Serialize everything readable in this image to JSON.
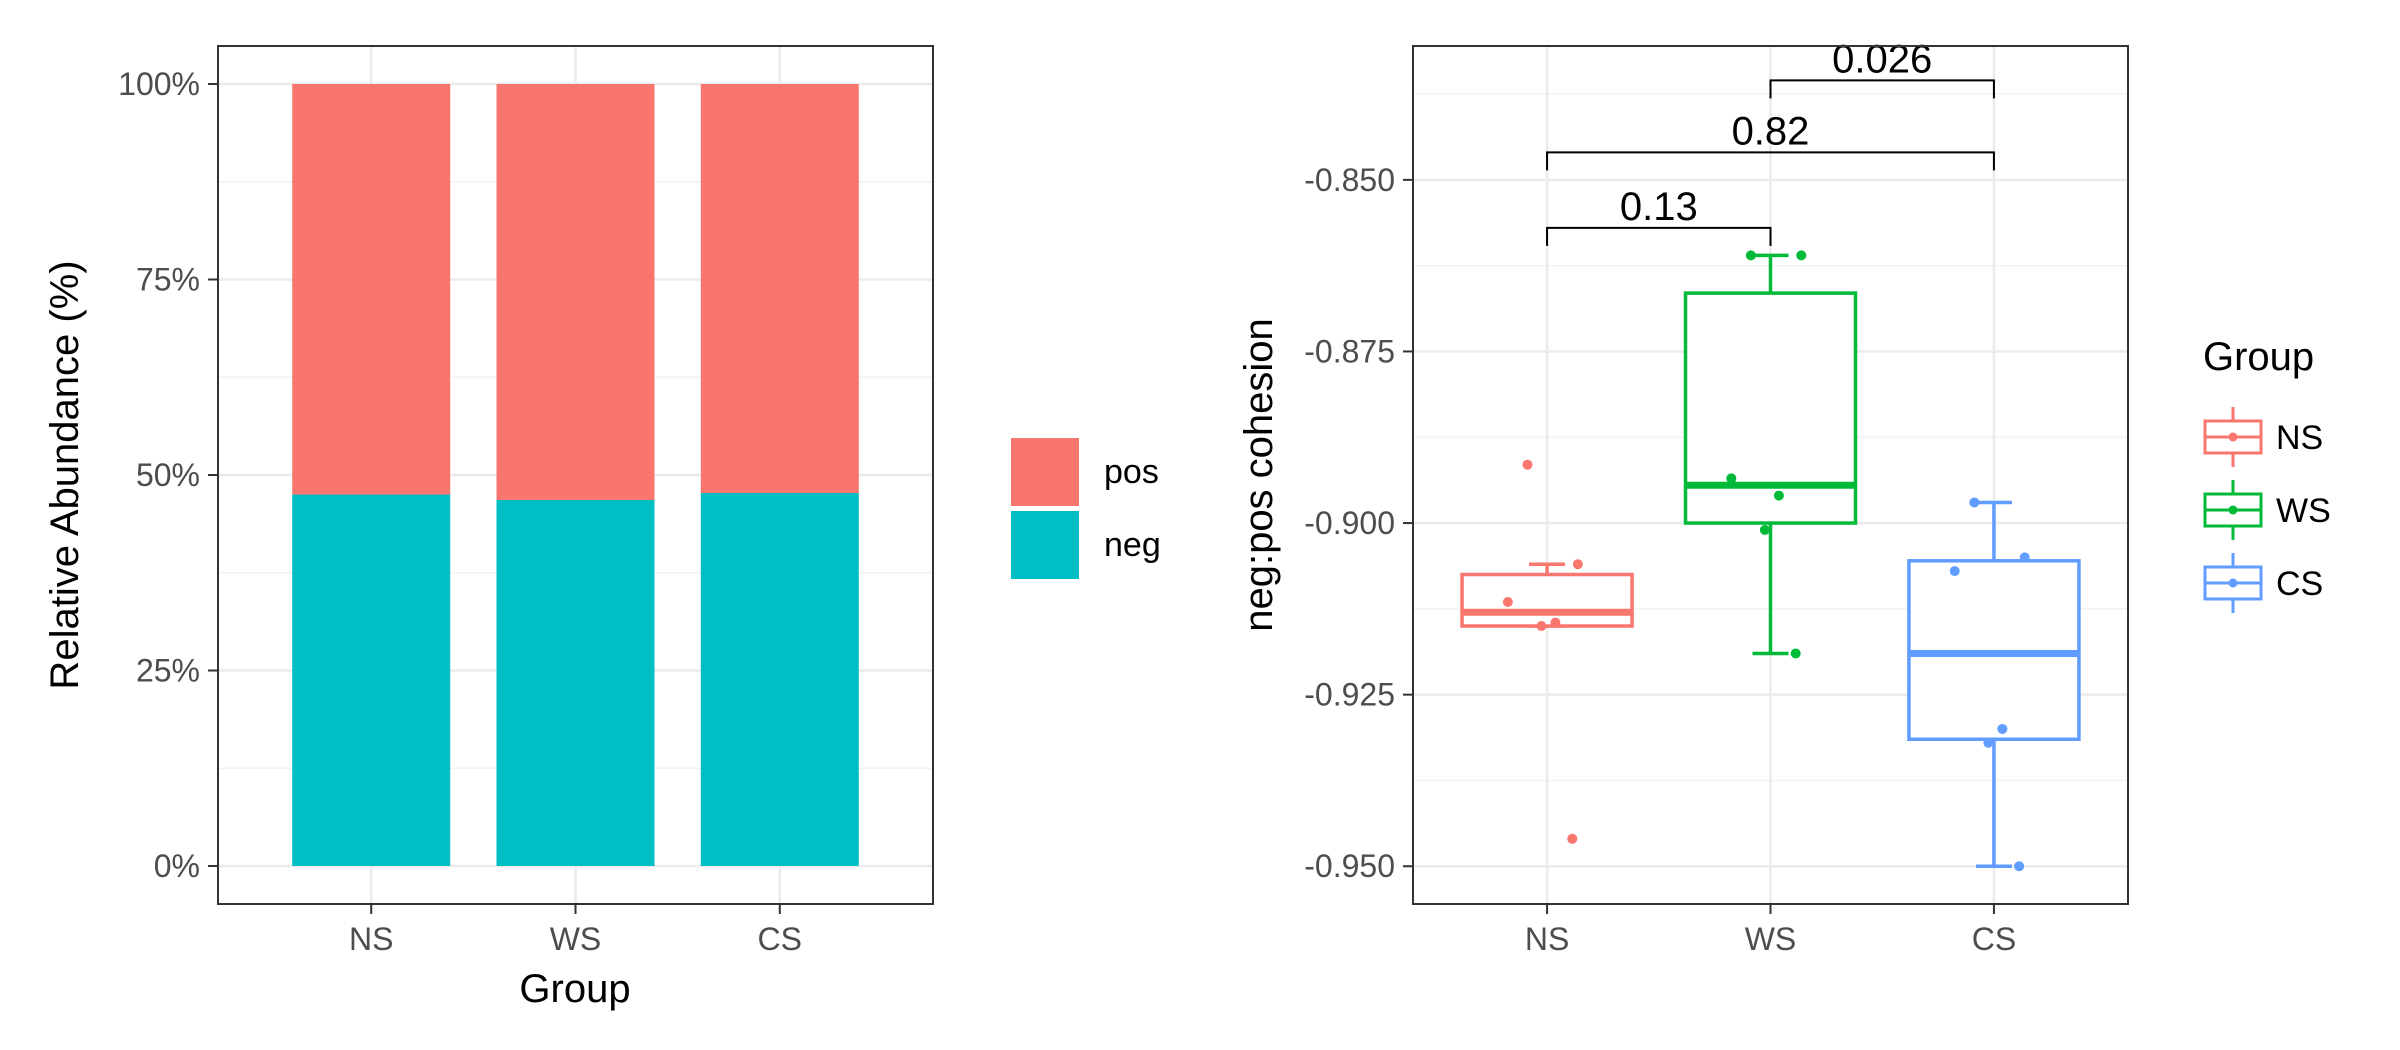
{
  "chart_data": [
    {
      "type": "bar",
      "stacked": true,
      "categories": [
        "NS",
        "WS",
        "CS"
      ],
      "series": [
        {
          "name": "pos",
          "color": "#F8766D",
          "values": [
            52.5,
            53.2,
            52.3
          ]
        },
        {
          "name": "neg",
          "color": "#00BFC4",
          "values": [
            47.5,
            46.8,
            47.7
          ]
        }
      ],
      "yticks": [
        0,
        25,
        50,
        75,
        100
      ],
      "ytick_labels": [
        "0%",
        "25%",
        "50%",
        "75%",
        "100%"
      ],
      "ylim": [
        0,
        100
      ],
      "xlabel": "Group",
      "ylabel": "Relative Abundance (%)",
      "legend_entries": [
        "pos",
        "neg"
      ],
      "legend_position": "right",
      "grid": true
    },
    {
      "type": "box",
      "categories": [
        "NS",
        "WS",
        "CS"
      ],
      "groups": [
        {
          "name": "NS",
          "color": "#F8766D",
          "min": -0.915,
          "q1": -0.915,
          "median": -0.913,
          "q3": -0.9075,
          "max": -0.906,
          "points": [
            -0.8915,
            -0.906,
            -0.9115,
            -0.9145,
            -0.915,
            -0.946
          ]
        },
        {
          "name": "WS",
          "color": "#00BA38",
          "min": -0.919,
          "q1": -0.9,
          "median": -0.8945,
          "q3": -0.8665,
          "max": -0.861,
          "points": [
            -0.861,
            -0.861,
            -0.8935,
            -0.896,
            -0.901,
            -0.919
          ]
        },
        {
          "name": "CS",
          "color": "#619CFF",
          "min": -0.95,
          "q1": -0.9315,
          "median": -0.919,
          "q3": -0.9055,
          "max": -0.897,
          "points": [
            -0.897,
            -0.905,
            -0.907,
            -0.93,
            -0.932,
            -0.95
          ]
        }
      ],
      "yticks": [
        -0.95,
        -0.925,
        -0.9,
        -0.875,
        -0.85
      ],
      "ytick_labels": [
        "-0.950",
        "-0.925",
        "-0.900",
        "-0.875",
        "-0.850"
      ],
      "ylim": [
        -0.9555,
        -0.8305
      ],
      "xlabel": "",
      "ylabel": "neg:pos cohesion",
      "legend_title": "Group",
      "legend_entries": [
        "NS",
        "WS",
        "CS"
      ],
      "legend_position": "right",
      "grid": true,
      "comparisons": [
        {
          "from": "NS",
          "to": "WS",
          "label": "0.13",
          "y": -0.857
        },
        {
          "from": "NS",
          "to": "CS",
          "label": "0.82",
          "y": -0.846
        },
        {
          "from": "WS",
          "to": "CS",
          "label": "0.026",
          "y": -0.8355
        }
      ]
    }
  ]
}
